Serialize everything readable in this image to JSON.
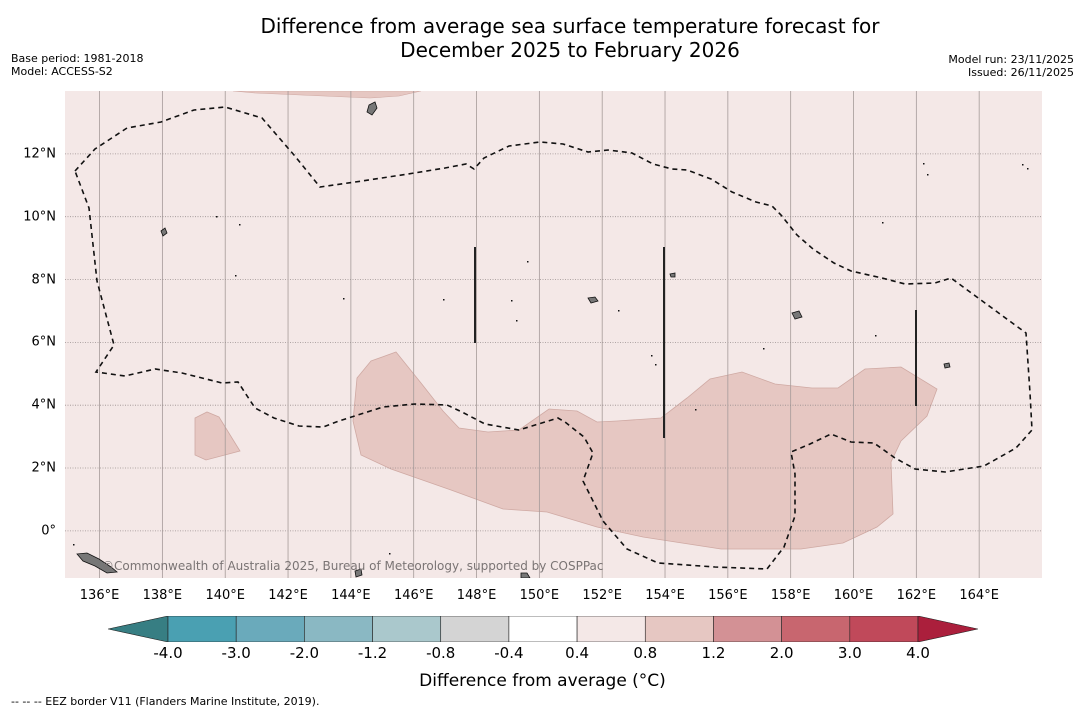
{
  "title": {
    "line1": "Difference from average sea surface temperature forecast for",
    "line2": "December 2025 to February 2026"
  },
  "meta_left": {
    "base_period": "Base period: 1981-2018",
    "model": "Model: ACCESS-S2"
  },
  "meta_right": {
    "model_run": "Model run: 23/11/2025",
    "issued": "Issued: 26/11/2025"
  },
  "map": {
    "longitude_labels": [
      "136°E",
      "138°E",
      "140°E",
      "142°E",
      "144°E",
      "146°E",
      "148°E",
      "150°E",
      "152°E",
      "154°E",
      "156°E",
      "158°E",
      "160°E",
      "162°E",
      "164°E"
    ],
    "longitude_values": [
      136,
      138,
      140,
      142,
      144,
      146,
      148,
      150,
      152,
      154,
      156,
      158,
      160,
      162,
      164
    ],
    "latitude_labels": [
      "12°N",
      "10°N",
      "8°N",
      "6°N",
      "4°N",
      "2°N",
      "0°"
    ],
    "latitude_values": [
      12,
      10,
      8,
      6,
      4,
      2,
      0
    ],
    "lon_range": [
      134.9,
      166
    ],
    "lat_range": [
      -1.5,
      14
    ],
    "watermark": "©Commonwealth of Australia 2025, Bureau of Meteorology, supported by COSPPac",
    "colors": {
      "background_anomaly": "#f4e8e7",
      "warm_anomaly": "#e6c7c2",
      "land": "#777777",
      "gridline": "#a59a99"
    }
  },
  "legend": {
    "bins": [
      {
        "from": "-inf",
        "to": -4.0,
        "color": "#377e83"
      },
      {
        "from": -4.0,
        "to": -3.0,
        "color": "#4aa0b2"
      },
      {
        "from": -3.0,
        "to": -2.0,
        "color": "#6aaabb"
      },
      {
        "from": -2.0,
        "to": -1.2,
        "color": "#8ab8c3"
      },
      {
        "from": -1.2,
        "to": -0.8,
        "color": "#aac8cc"
      },
      {
        "from": -0.8,
        "to": -0.4,
        "color": "#d4d4d4"
      },
      {
        "from": -0.4,
        "to": 0.4,
        "color": "#ffffff"
      },
      {
        "from": 0.4,
        "to": 0.8,
        "color": "#f4e8e7"
      },
      {
        "from": 0.8,
        "to": 1.2,
        "color": "#e6c7c2"
      },
      {
        "from": 1.2,
        "to": 2.0,
        "color": "#d39195"
      },
      {
        "from": 2.0,
        "to": 3.0,
        "color": "#c8666f"
      },
      {
        "from": 3.0,
        "to": 4.0,
        "color": "#c0495a"
      },
      {
        "from": 4.0,
        "to": "inf",
        "color": "#ab1f3c"
      }
    ],
    "tick_labels": [
      "-4.0",
      "-3.0",
      "-2.0",
      "-1.2",
      "-0.8",
      "-0.4",
      "0.4",
      "0.8",
      "1.2",
      "2.0",
      "3.0",
      "4.0"
    ],
    "title": "Difference from average (°C)"
  },
  "footnote": "--  --  -- EEZ border V11 (Flanders Marine Institute, 2019)."
}
